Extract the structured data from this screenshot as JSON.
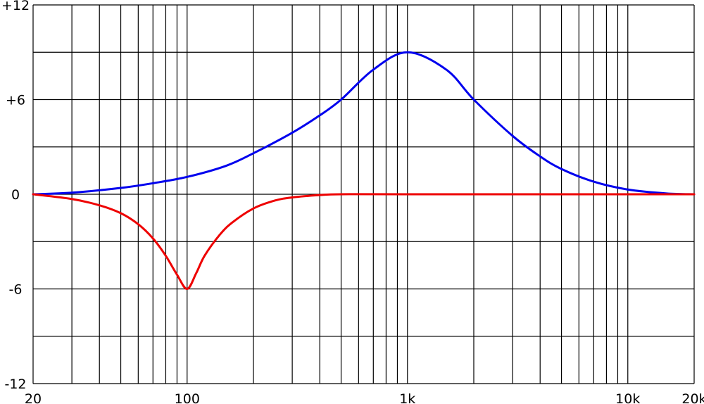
{
  "chart_data": {
    "type": "line",
    "title": "",
    "xlabel": "",
    "ylabel": "",
    "x_scale": "log",
    "xlim": [
      20,
      20000
    ],
    "ylim": [
      -12,
      12
    ],
    "grid": true,
    "legend": "none",
    "x_grid_values": [
      20,
      30,
      40,
      50,
      60,
      70,
      80,
      90,
      100,
      200,
      300,
      400,
      500,
      600,
      700,
      800,
      900,
      1000,
      2000,
      3000,
      4000,
      5000,
      6000,
      7000,
      8000,
      9000,
      10000,
      20000
    ],
    "y_grid_values": [
      -12,
      -9,
      -6,
      -3,
      0,
      3,
      6,
      9,
      12
    ],
    "x_tick_labels": [
      {
        "value": 20,
        "label": "20"
      },
      {
        "value": 100,
        "label": "100"
      },
      {
        "value": 1000,
        "label": "1k"
      },
      {
        "value": 10000,
        "label": "10k"
      },
      {
        "value": 20000,
        "label": "20k"
      }
    ],
    "y_tick_labels": [
      {
        "value": 12,
        "label": "+12"
      },
      {
        "value": 6,
        "label": "+6"
      },
      {
        "value": 0,
        "label": "0"
      },
      {
        "value": -6,
        "label": "-6"
      },
      {
        "value": -12,
        "label": "-12"
      }
    ],
    "series": [
      {
        "color": "#0000ee",
        "x": [
          20,
          30,
          50,
          70,
          100,
          150,
          200,
          300,
          400,
          500,
          700,
          1000,
          1500,
          2000,
          3000,
          4000,
          5000,
          7000,
          10000,
          15000,
          20000
        ],
        "y": [
          0,
          0.1,
          0.4,
          0.7,
          1.1,
          1.8,
          2.6,
          3.9,
          5.0,
          6.0,
          7.9,
          9.0,
          7.9,
          6.0,
          3.7,
          2.4,
          1.6,
          0.8,
          0.3,
          0.05,
          0
        ]
      },
      {
        "color": "#ee0000",
        "x": [
          20,
          30,
          40,
          50,
          60,
          70,
          80,
          90,
          100,
          110,
          120,
          140,
          160,
          200,
          250,
          300,
          400,
          500,
          1000,
          20000
        ],
        "y": [
          0,
          -0.3,
          -0.7,
          -1.2,
          -1.9,
          -2.8,
          -3.9,
          -5.1,
          -6.0,
          -5.0,
          -3.9,
          -2.6,
          -1.8,
          -0.9,
          -0.4,
          -0.2,
          -0.05,
          0,
          0,
          0
        ]
      }
    ]
  }
}
